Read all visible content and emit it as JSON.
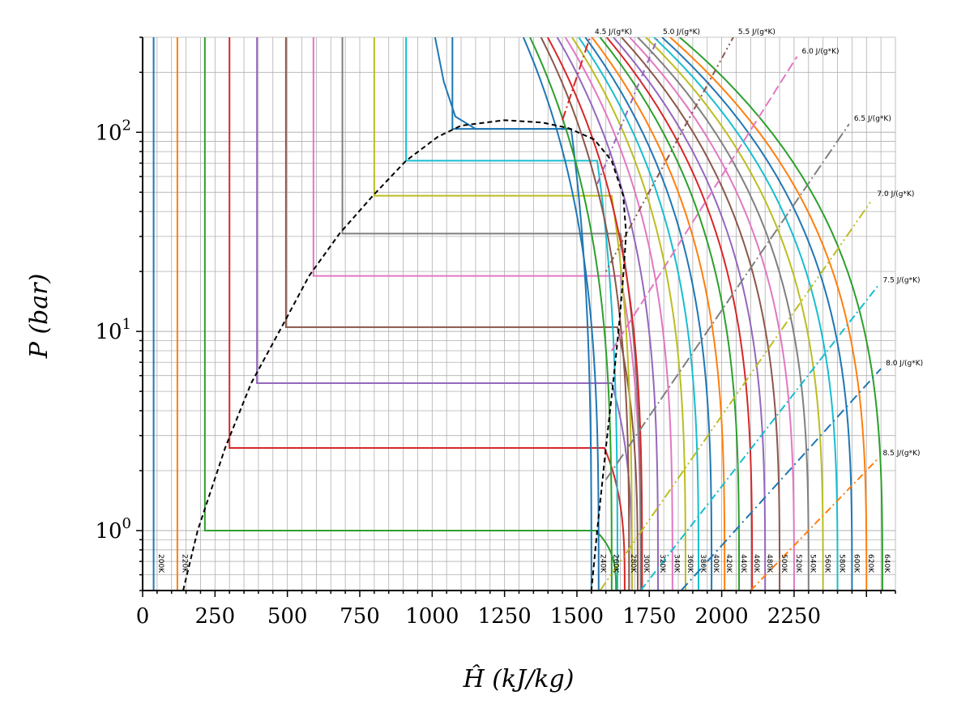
{
  "chart_data": {
    "type": "line",
    "title": "",
    "xlabel": "Ĥ (kJ/kg)",
    "ylabel": "P (bar)",
    "xlim": [
      0,
      2600
    ],
    "ylim": [
      0.5,
      300
    ],
    "y_scale": "log",
    "grid": true,
    "legend": "none",
    "x_ticks": [
      0,
      250,
      500,
      750,
      1000,
      1250,
      1500,
      1750,
      2000,
      2250
    ],
    "x_tick_labels": [
      "0",
      "250",
      "500",
      "750",
      "1000",
      "1250",
      "1500",
      "1750",
      "2000",
      "2250"
    ],
    "y_ticks": [
      1,
      10,
      100
    ],
    "y_tick_labels": [
      "10^0",
      "10^1",
      "10^2"
    ],
    "colors": [
      "#1f77b4",
      "#ff7f0e",
      "#2ca02c",
      "#d62728",
      "#9467bd",
      "#8c564b",
      "#e377c2",
      "#7f7f7f",
      "#bcbd22",
      "#17becf"
    ],
    "dome": {
      "name": "saturation dome",
      "style": "dashed",
      "color": "#000000",
      "liquid": [
        [
          140,
          0.5
        ],
        [
          190,
          1.0
        ],
        [
          285,
          2.6
        ],
        [
          375,
          5.5
        ],
        [
          480,
          10.5
        ],
        [
          575,
          19
        ],
        [
          680,
          31
        ],
        [
          795,
          48
        ],
        [
          910,
          72
        ],
        [
          1020,
          95
        ],
        [
          1100,
          108
        ],
        [
          1250,
          115
        ]
      ],
      "vapor": [
        [
          1250,
          115
        ],
        [
          1380,
          112
        ],
        [
          1470,
          105
        ],
        [
          1560,
          92
        ],
        [
          1620,
          72
        ],
        [
          1660,
          48
        ],
        [
          1670,
          31
        ],
        [
          1660,
          19
        ],
        [
          1645,
          10.5
        ],
        [
          1625,
          5.5
        ],
        [
          1600,
          2.6
        ],
        [
          1570,
          1.0
        ],
        [
          1550,
          0.5
        ]
      ]
    },
    "isotherms": [
      {
        "label": "200K",
        "h_liq": 38,
        "t": 0,
        "color": "#1f77b4"
      },
      {
        "label": "220K",
        "h_liq": 120,
        "t": 1,
        "color": "#ff7f0e"
      },
      {
        "label": "",
        "h_liq": 215,
        "t": 2,
        "P_sat": 1.0,
        "h_vap": 1565,
        "color": "#2ca02c"
      },
      {
        "label": "",
        "h_liq": 300,
        "t": 3,
        "P_sat": 2.6,
        "h_vap": 1595,
        "color": "#d62728"
      },
      {
        "label": "",
        "h_liq": 395,
        "t": 4,
        "P_sat": 5.5,
        "h_vap": 1620,
        "color": "#9467bd"
      },
      {
        "label": "",
        "h_liq": 495,
        "t": 5,
        "P_sat": 10.5,
        "h_vap": 1640,
        "color": "#8c564b"
      },
      {
        "label": "",
        "h_liq": 590,
        "t": 6,
        "P_sat": 19,
        "h_vap": 1650,
        "color": "#e377c2"
      },
      {
        "label": "",
        "h_liq": 690,
        "t": 7,
        "P_sat": 31,
        "h_vap": 1650,
        "color": "#7f7f7f"
      },
      {
        "label": "",
        "h_liq": 800,
        "t": 8,
        "P_sat": 48,
        "h_vap": 1620,
        "color": "#bcbd22"
      },
      {
        "label": "",
        "h_liq": 910,
        "t": 9,
        "P_sat": 72,
        "h_vap": 1570,
        "color": "#17becf"
      },
      {
        "label": "",
        "h_liq": 1070,
        "t": 10,
        "P_sat": 104,
        "h_vap": 1480,
        "color": "#1f77b4"
      }
    ],
    "superheated_isotherms": [
      {
        "label": "240K",
        "h_low": 1575,
        "color": "#1f77b4"
      },
      {
        "label": "260K",
        "h_low": 1620,
        "color": "#2ca02c"
      },
      {
        "label": "280K",
        "h_low": 1680,
        "color": "#8c564b"
      },
      {
        "label": "300K",
        "h_low": 1725,
        "color": "#d62728"
      },
      {
        "label": "320K",
        "h_low": 1780,
        "color": "#9467bd"
      },
      {
        "label": "340K",
        "h_low": 1830,
        "color": "#e377c2"
      },
      {
        "label": "360K",
        "h_low": 1875,
        "color": "#bcbd22"
      },
      {
        "label": "380K",
        "h_low": 1920,
        "color": "#17becf"
      },
      {
        "label": "400K",
        "h_low": 1965,
        "color": "#1f77b4"
      },
      {
        "label": "420K",
        "h_low": 2010,
        "color": "#ff7f0e"
      },
      {
        "label": "440K",
        "h_low": 2060,
        "color": "#2ca02c"
      },
      {
        "label": "460K",
        "h_low": 2105,
        "color": "#d62728"
      },
      {
        "label": "480K",
        "h_low": 2150,
        "color": "#9467bd"
      },
      {
        "label": "500K",
        "h_low": 2200,
        "color": "#8c564b"
      },
      {
        "label": "520K",
        "h_low": 2250,
        "color": "#e377c2"
      },
      {
        "label": "540K",
        "h_low": 2300,
        "color": "#7f7f7f"
      },
      {
        "label": "560K",
        "h_low": 2350,
        "color": "#bcbd22"
      },
      {
        "label": "580K",
        "h_low": 2400,
        "color": "#17becf"
      },
      {
        "label": "600K",
        "h_low": 2450,
        "color": "#1f77b4"
      },
      {
        "label": "620K",
        "h_low": 2500,
        "color": "#ff7f0e"
      },
      {
        "label": "640K",
        "h_low": 2555,
        "color": "#2ca02c"
      }
    ],
    "isentropes": [
      {
        "label": "4.5 J/(g*K)",
        "h0": 1450,
        "P0": 115,
        "h1": 1545,
        "P1": 300,
        "color": "#d62728",
        "dash": "12,4,2,4"
      },
      {
        "label": "5.0 J/(g*K)",
        "h0": 1570,
        "P0": 55,
        "h1": 1780,
        "P1": 300,
        "color": "#9467bd",
        "dash": "8,4,2,4"
      },
      {
        "label": "5.5 J/(g*K)",
        "h0": 1600,
        "P0": 20,
        "h1": 2040,
        "P1": 300,
        "color": "#8c564b",
        "dash": "2,4,2,4,8,4"
      },
      {
        "label": "6.0 J/(g*K)",
        "h0": 1620,
        "P0": 8,
        "h1": 2260,
        "P1": 240,
        "color": "#e377c2",
        "dash": "12,5"
      },
      {
        "label": "6.5 J/(g*K)",
        "h0": 1600,
        "P0": 1.8,
        "h1": 2440,
        "P1": 110,
        "color": "#7f7f7f",
        "dash": "14,4,2,4"
      },
      {
        "label": "7.0 J/(g*K)",
        "h0": 1580,
        "P0": 0.5,
        "h1": 2520,
        "P1": 46,
        "color": "#bcbd22",
        "dash": "12,4,2,4,2,4"
      },
      {
        "label": "7.5 J/(g*K)",
        "h0": 1720,
        "P0": 0.5,
        "h1": 2540,
        "P1": 17,
        "color": "#17becf",
        "dash": "10,4,2,4"
      },
      {
        "label": "8.0 J/(g*K)",
        "h0": 1860,
        "P0": 0.5,
        "h1": 2550,
        "P1": 6.5,
        "color": "#1f77b4",
        "dash": "12,5,2,5"
      },
      {
        "label": "8.5 J/(g*K)",
        "h0": 2100,
        "P0": 0.5,
        "h1": 2540,
        "P1": 2.3,
        "color": "#ff7f0e",
        "dash": "9,4,2,4"
      }
    ]
  }
}
